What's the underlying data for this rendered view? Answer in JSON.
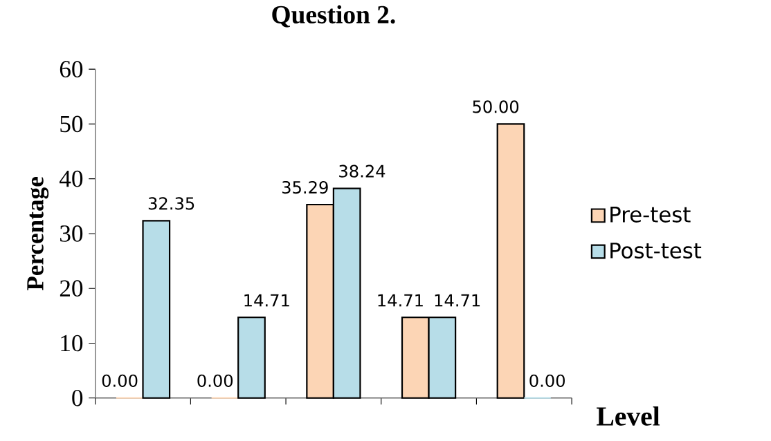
{
  "chart_data": {
    "type": "bar",
    "title": "Question 2.",
    "xlabel": "Level",
    "ylabel": "Percentage",
    "categories": [
      null,
      null,
      null,
      null,
      null
    ],
    "series": [
      {
        "name": "Pre-test",
        "color": "#fcd5b5",
        "values": [
          0,
          0,
          35.29,
          14.71,
          50
        ],
        "value_labels": [
          "0.00",
          "0.00",
          "35.29",
          "14.71",
          "50.00"
        ]
      },
      {
        "name": "Post-test",
        "color": "#b7dde8",
        "values": [
          32.35,
          14.71,
          38.24,
          14.71,
          0
        ],
        "value_labels": [
          "32.35",
          "14.71",
          "38.24",
          "14.71",
          "0.00"
        ]
      }
    ],
    "ylim": [
      0,
      60
    ],
    "yticks": [
      0,
      10,
      20,
      30,
      40,
      50,
      60
    ],
    "legend": "right",
    "grid": false
  }
}
